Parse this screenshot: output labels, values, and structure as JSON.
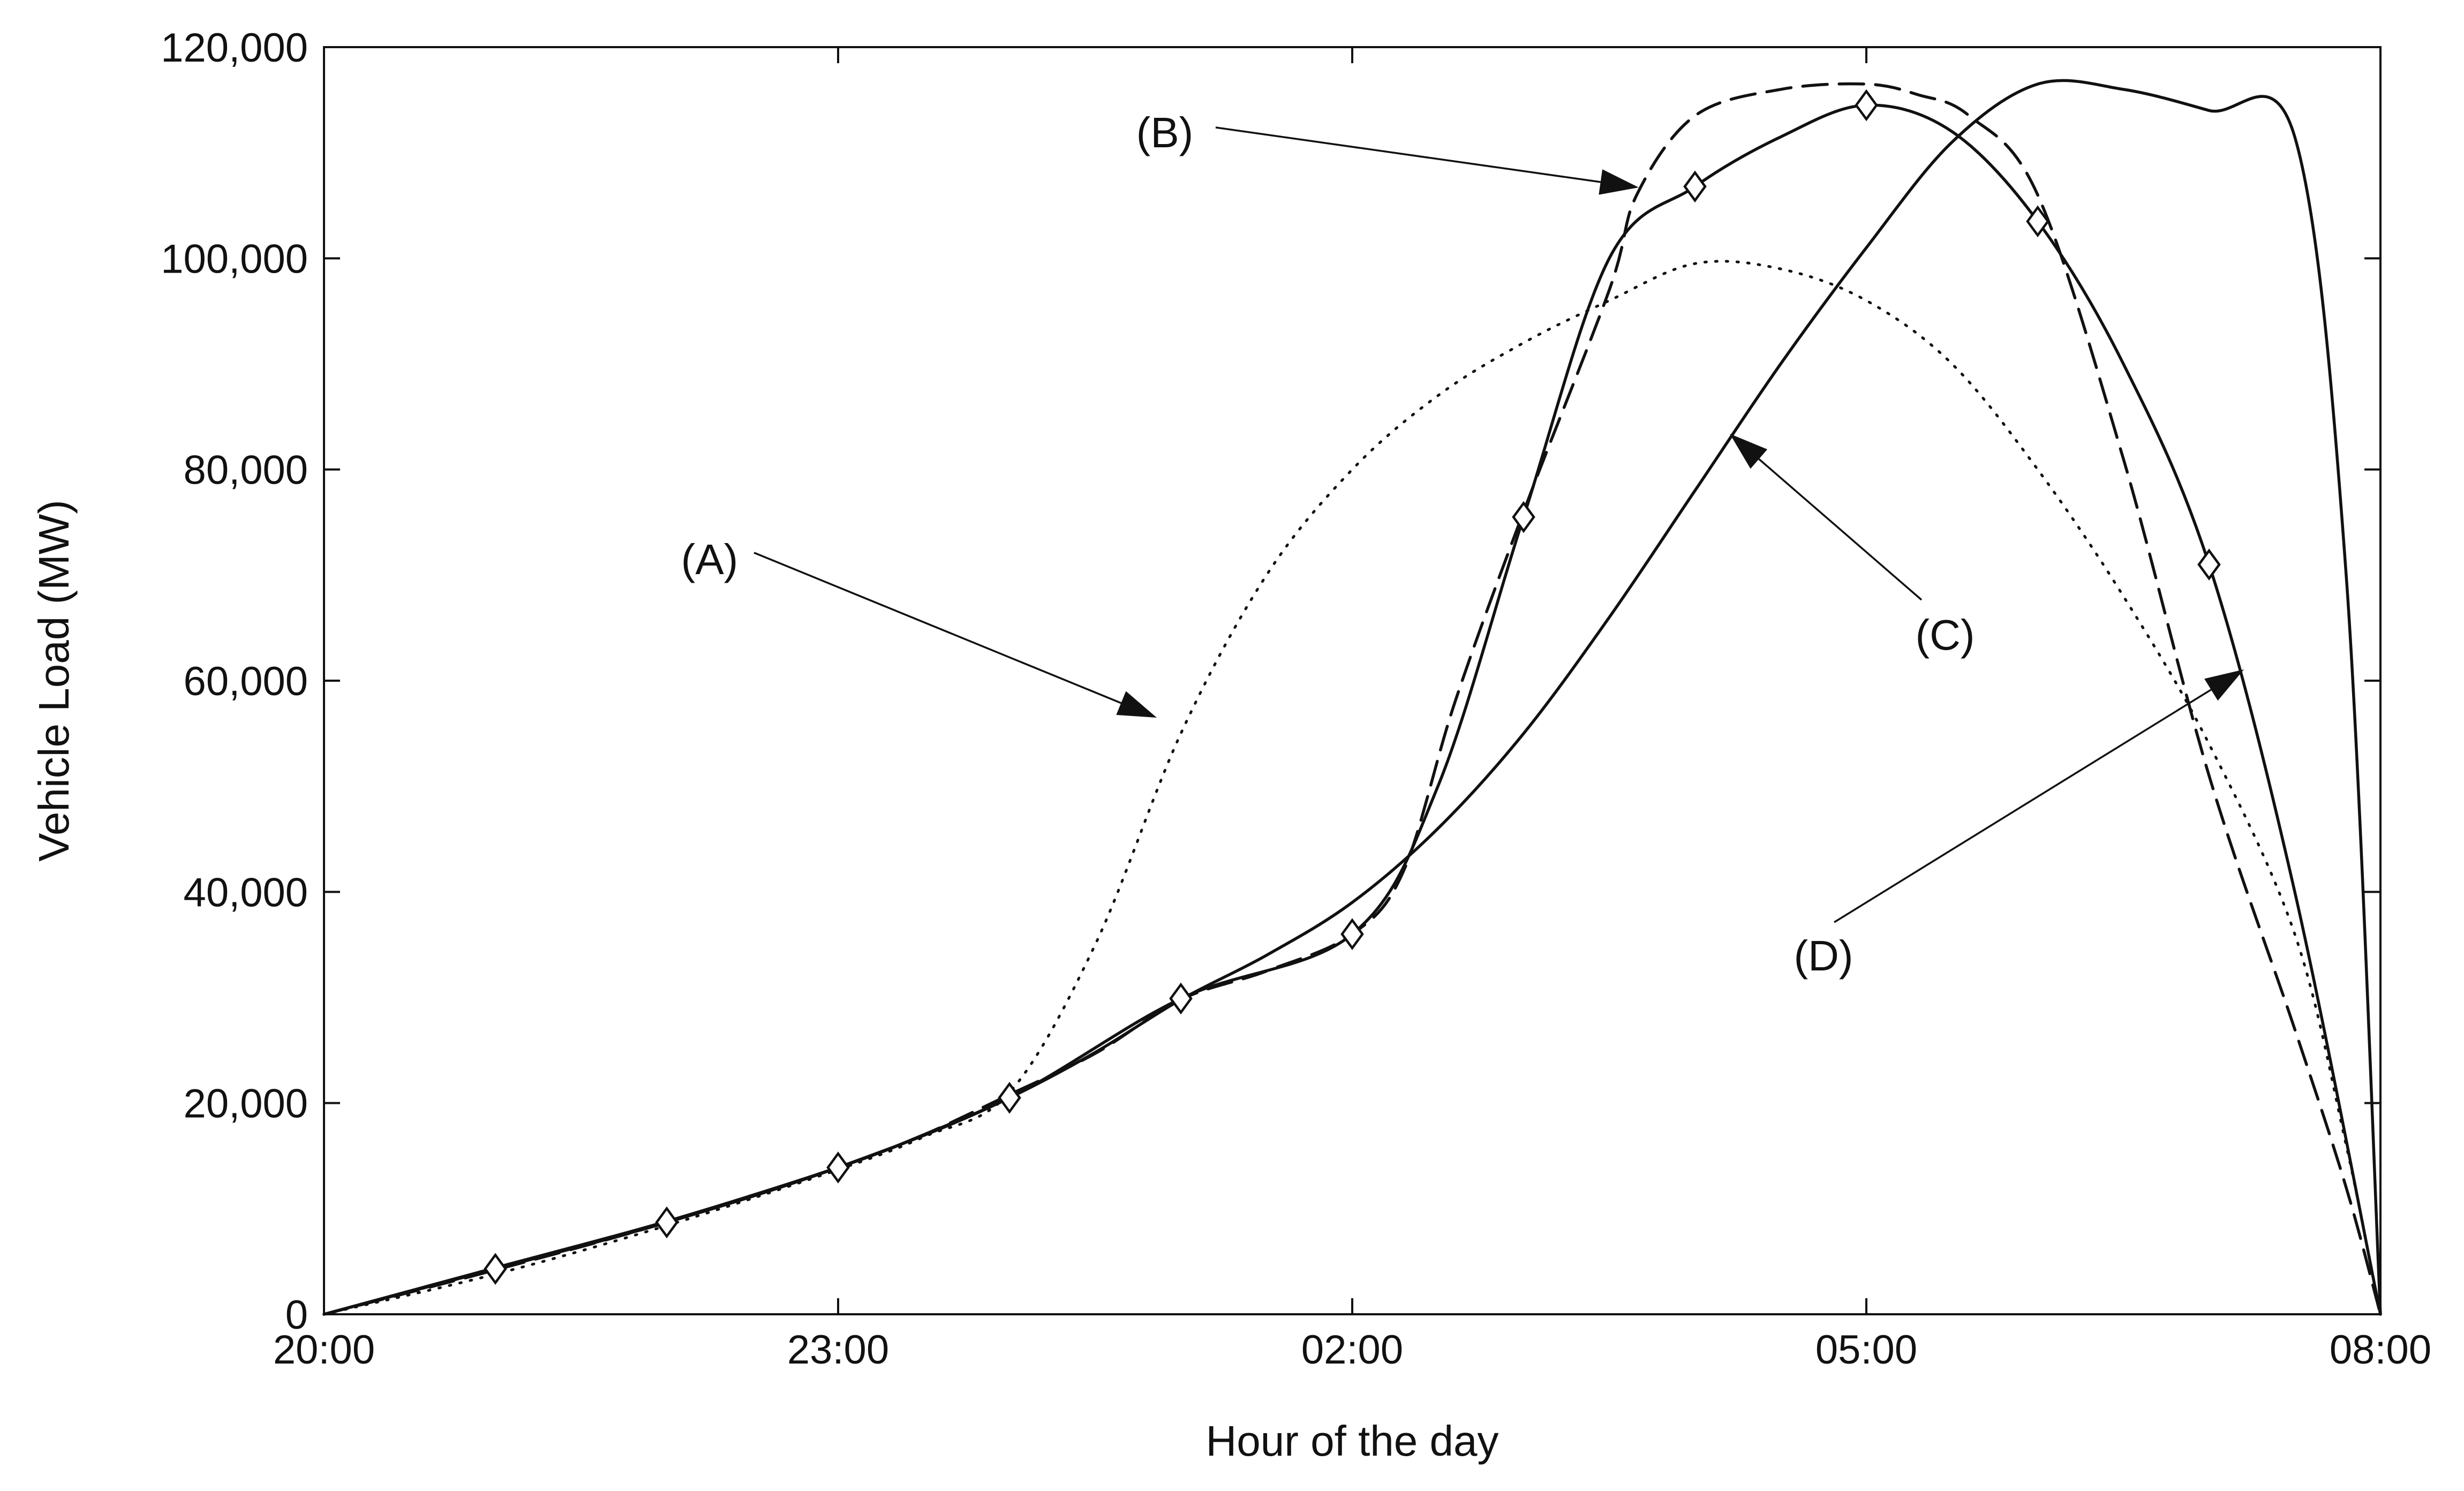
{
  "chart_data": {
    "type": "line",
    "xlabel": "Hour of the day",
    "ylabel": "Vehicle Load (MW)",
    "xlim": [
      0,
      12
    ],
    "ylim": [
      0,
      120000
    ],
    "x_tick_values": [
      0,
      3,
      6,
      9,
      12
    ],
    "x_tick_labels": [
      "20:00",
      "23:00",
      "02:00",
      "05:00",
      "08:00"
    ],
    "y_tick_values": [
      0,
      20000,
      40000,
      60000,
      80000,
      100000,
      120000
    ],
    "y_tick_labels": [
      "0",
      "20,000",
      "40,000",
      "60,000",
      "80,000",
      "100,000",
      "120,000"
    ],
    "grid": false,
    "series": [
      {
        "name": "(A)",
        "style": "dotted",
        "x": [
          0,
          1,
          2,
          3,
          3.5,
          4,
          4.5,
          5,
          5.5,
          6,
          6.5,
          7,
          7.5,
          8,
          8.5,
          9,
          9.5,
          10,
          10.5,
          11,
          11.5,
          11.8,
          12
        ],
        "y": [
          0,
          3800,
          8400,
          13700,
          16800,
          21000,
          35000,
          55000,
          70000,
          80000,
          87000,
          92000,
          96000,
          99500,
          99000,
          96000,
          90000,
          80000,
          68000,
          54000,
          36000,
          16000,
          0
        ]
      },
      {
        "name": "(B)",
        "style": "dashed",
        "x": [
          0,
          1,
          2,
          3,
          3.5,
          4,
          4.5,
          5,
          5.5,
          6,
          6.3,
          6.6,
          7,
          7.5,
          7.66,
          8,
          8.5,
          9,
          9.3,
          9.6,
          10,
          10.5,
          11,
          11.5,
          11.8,
          12
        ],
        "y": [
          0,
          4200,
          8700,
          13900,
          17000,
          20800,
          24700,
          29800,
          32500,
          36000,
          42000,
          58000,
          76000,
          97000,
          106000,
          113500,
          116000,
          116500,
          115500,
          113500,
          106000,
          81000,
          51000,
          27000,
          12000,
          0
        ]
      },
      {
        "name": "(C)",
        "style": "solid",
        "x": [
          0,
          1,
          2,
          3,
          3.5,
          4,
          4.5,
          5,
          5.5,
          6,
          6.5,
          7,
          7.5,
          8,
          8.5,
          9,
          9.5,
          10,
          10.5,
          11,
          11.5,
          11.8,
          12
        ],
        "y": [
          0,
          4400,
          8800,
          13900,
          17000,
          20500,
          24800,
          29800,
          34000,
          39000,
          46000,
          55000,
          66000,
          78000,
          90000,
          101000,
          111000,
          116500,
          116000,
          114000,
          111500,
          70000,
          0
        ]
      },
      {
        "name": "(D)",
        "style": "solid-diamond",
        "markers": "diamond",
        "x": [
          0,
          1,
          2,
          3,
          4,
          5,
          6,
          6.5,
          7,
          7.5,
          8,
          8.5,
          9,
          9.5,
          10,
          10.5,
          11,
          11.5,
          12
        ],
        "y": [
          0,
          4300,
          8700,
          13900,
          20500,
          29900,
          36000,
          50000,
          75500,
          100000,
          106800,
          111500,
          114500,
          112000,
          103500,
          90000,
          71000,
          40000,
          0
        ]
      }
    ],
    "annotations": [
      {
        "label": "(A)",
        "series": "(A)"
      },
      {
        "label": "(B)",
        "series": "(B)"
      },
      {
        "label": "(C)",
        "series": "(C)"
      },
      {
        "label": "(D)",
        "series": "(D)"
      }
    ]
  }
}
